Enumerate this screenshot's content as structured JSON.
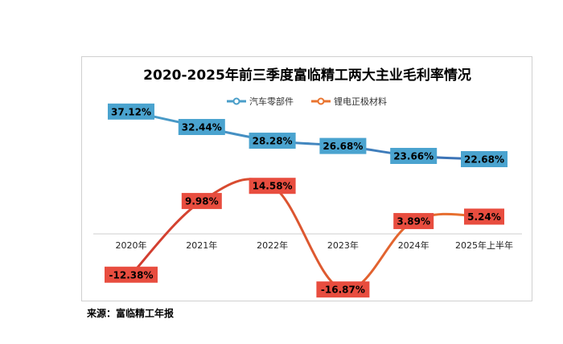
{
  "source_note": "来源：富临精工年报",
  "colors": {
    "auto_parts": "#4a9ec9",
    "auto_parts_end": "#3a6fb5",
    "lithium": "#e9742f",
    "lithium_start": "#d13b30",
    "label_blue_bg": "#4aa3cf",
    "label_red_bg": "#e84d3f",
    "axis": "#cfcfcf"
  },
  "chart_data": {
    "type": "line",
    "title": "2020-2025年前三季度富临精工两大主业毛利率情况",
    "categories": [
      "2020年",
      "2021年",
      "2022年",
      "2023年",
      "2024年",
      "2025年上半年"
    ],
    "series": [
      {
        "name": "汽车零部件",
        "values": [
          37.12,
          32.44,
          28.28,
          26.68,
          23.66,
          22.68
        ],
        "labels": [
          "37.12%",
          "32.44%",
          "28.28%",
          "26.68%",
          "23.66%",
          "22.68%"
        ]
      },
      {
        "name": "锂电正极材料",
        "values": [
          -12.38,
          9.98,
          14.58,
          -16.87,
          3.89,
          5.24
        ],
        "labels": [
          "-12.38%",
          "9.98%",
          "14.58%",
          "-16.87%",
          "3.89%",
          "5.24%"
        ]
      }
    ],
    "ylim": [
      -20,
      40
    ],
    "legend_position": "top-center",
    "grid": false
  }
}
